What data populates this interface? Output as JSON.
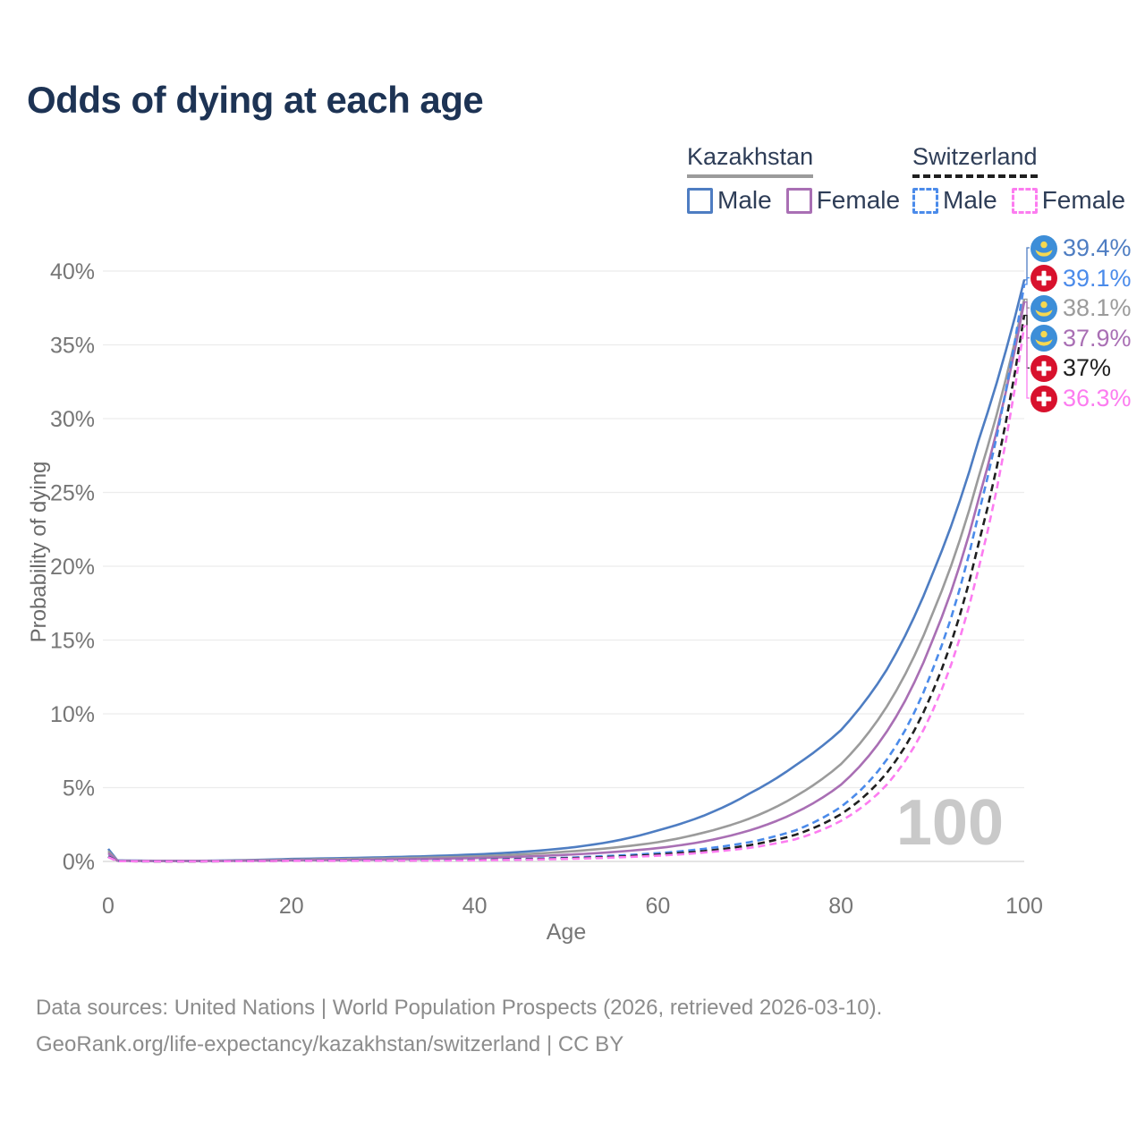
{
  "title": "Odds of dying at each age",
  "legend": {
    "groups": [
      {
        "label": "Kazakhstan",
        "rule_color": "#9b9b9b",
        "rule_style": "solid",
        "items": [
          {
            "label": "Male",
            "series": 0
          },
          {
            "label": "Female",
            "series": 2
          }
        ]
      },
      {
        "label": "Switzerland",
        "rule_color": "#1f1f1f",
        "rule_style": "dashed",
        "items": [
          {
            "label": "Male",
            "series": 3
          },
          {
            "label": "Female",
            "series": 5
          }
        ]
      }
    ]
  },
  "footer": {
    "line1": "Data sources: United Nations | World Population Prospects (2026, retrieved 2026-03-10).",
    "line2": "GeoRank.org/life-expectancy/kazakhstan/switzerland | CC BY"
  },
  "chart_data": {
    "type": "line",
    "title": "Odds of dying at each age",
    "xlabel": "Age",
    "ylabel": "Probability of dying",
    "xlim": [
      0,
      100
    ],
    "ylim": [
      0,
      41.5
    ],
    "grid": "horizontal",
    "legend_position": "top-right",
    "watermark": "100",
    "x_tick_values": [
      0,
      20,
      40,
      60,
      80,
      100
    ],
    "x_tick_labels": [
      "0",
      "20",
      "40",
      "60",
      "80",
      "100"
    ],
    "y_tick_values": [
      0,
      5,
      10,
      15,
      20,
      25,
      30,
      35,
      40
    ],
    "y_tick_labels": [
      "0%",
      "5%",
      "10%",
      "15%",
      "20%",
      "25%",
      "30%",
      "35%",
      "40%"
    ],
    "x": [
      0,
      1,
      5,
      10,
      15,
      20,
      25,
      30,
      35,
      40,
      45,
      50,
      55,
      60,
      65,
      70,
      75,
      80,
      85,
      90,
      95,
      100
    ],
    "series": [
      {
        "name": "Kazakhstan Male",
        "country": "Kazakhstan",
        "sex": "Male",
        "line": "solid",
        "color": "#4e7dc2",
        "end_label": "39.4%",
        "values": [
          0.85,
          0.07,
          0.04,
          0.04,
          0.09,
          0.17,
          0.22,
          0.28,
          0.36,
          0.47,
          0.64,
          0.9,
          1.35,
          2.1,
          3.1,
          4.6,
          6.5,
          8.9,
          13.0,
          19.5,
          28.5,
          39.4
        ]
      },
      {
        "name": "Kazakhstan Both sexes",
        "country": "Kazakhstan",
        "sex": "Both sexes",
        "line": "solid",
        "color": "#9b9b9b",
        "end_label": "38.1%",
        "values": [
          0.7,
          0.06,
          0.03,
          0.03,
          0.07,
          0.12,
          0.16,
          0.2,
          0.26,
          0.34,
          0.47,
          0.66,
          0.92,
          1.3,
          1.95,
          2.9,
          4.4,
          6.6,
          10.5,
          16.8,
          26.0,
          38.1
        ]
      },
      {
        "name": "Kazakhstan Female",
        "country": "Kazakhstan",
        "sex": "Female",
        "line": "solid",
        "color": "#a96fb4",
        "end_label": "37.9%",
        "values": [
          0.55,
          0.05,
          0.025,
          0.025,
          0.05,
          0.08,
          0.1,
          0.13,
          0.17,
          0.23,
          0.32,
          0.45,
          0.63,
          0.9,
          1.35,
          2.1,
          3.3,
          5.2,
          8.8,
          15.0,
          24.5,
          37.9
        ]
      },
      {
        "name": "Switzerland Male",
        "country": "Switzerland",
        "sex": "Male",
        "line": "dashed",
        "color": "#4b8bea",
        "end_label": "39.1%",
        "values": [
          0.36,
          0.03,
          0.01,
          0.01,
          0.03,
          0.06,
          0.06,
          0.07,
          0.09,
          0.12,
          0.17,
          0.25,
          0.38,
          0.56,
          0.85,
          1.3,
          2.1,
          3.7,
          6.9,
          13.0,
          23.5,
          39.1
        ]
      },
      {
        "name": "Switzerland Both sexes",
        "country": "Switzerland",
        "sex": "Both sexes",
        "line": "dashed",
        "color": "#1f1f1f",
        "end_label": "37%",
        "values": [
          0.32,
          0.025,
          0.009,
          0.009,
          0.025,
          0.05,
          0.05,
          0.06,
          0.075,
          0.1,
          0.14,
          0.21,
          0.31,
          0.46,
          0.7,
          1.1,
          1.8,
          3.2,
          6.0,
          11.5,
          21.5,
          37.0
        ]
      },
      {
        "name": "Switzerland Female",
        "country": "Switzerland",
        "sex": "Female",
        "line": "dashed",
        "color": "#fc7cf0",
        "end_label": "36.3%",
        "values": [
          0.29,
          0.02,
          0.008,
          0.008,
          0.02,
          0.04,
          0.04,
          0.05,
          0.06,
          0.08,
          0.11,
          0.17,
          0.26,
          0.39,
          0.6,
          0.92,
          1.5,
          2.75,
          5.2,
          10.2,
          19.8,
          36.3
        ]
      }
    ],
    "label_order": [
      0,
      3,
      1,
      2,
      4,
      5
    ],
    "colors": {
      "title": "#1d3354",
      "tick": "#767676",
      "gridline": "#ececec",
      "zero_gridline": "#dcdcdc",
      "watermark": "#c9c9c9",
      "kazakhstan_flag_blue": "#3d8ed8",
      "kazakhstan_flag_yellow": "#f6d850",
      "switzerland_flag_red": "#d8112d"
    }
  }
}
